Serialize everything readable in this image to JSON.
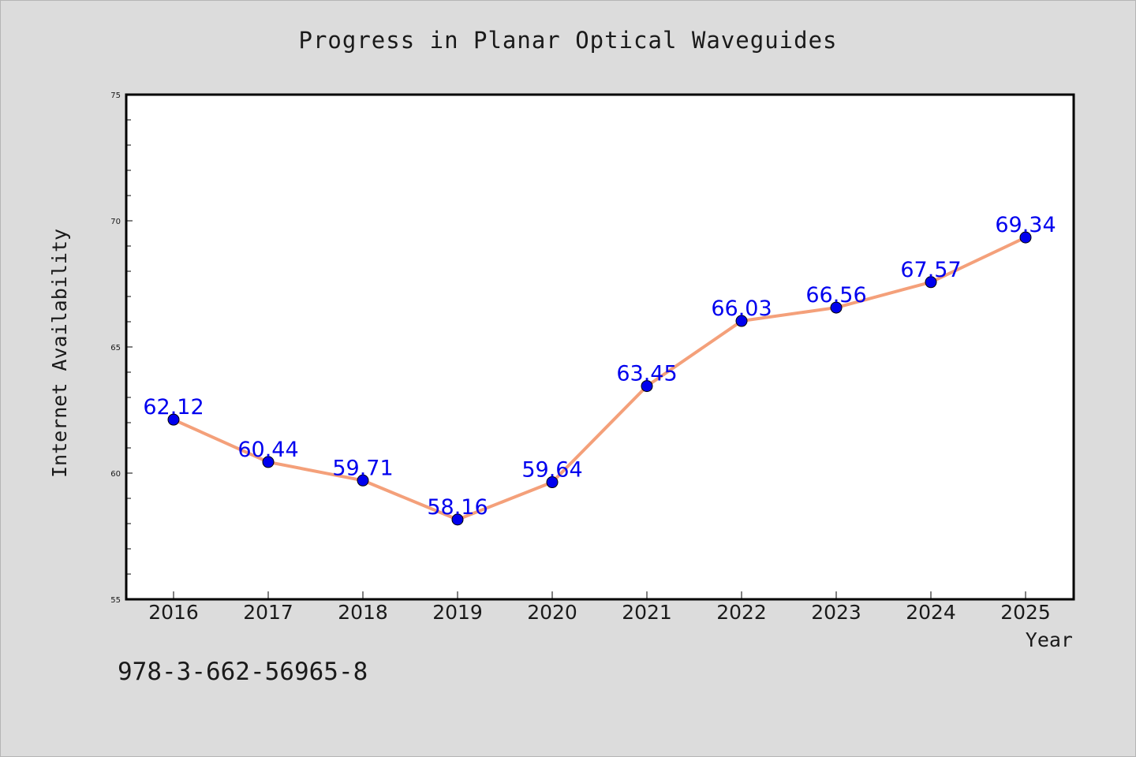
{
  "chart_data": {
    "type": "line",
    "title": "Progress in Planar Optical Waveguides",
    "xlabel": "Year",
    "ylabel": "Internet Availability",
    "categories": [
      "2016",
      "2017",
      "2018",
      "2019",
      "2020",
      "2021",
      "2022",
      "2023",
      "2024",
      "2025"
    ],
    "series": [
      {
        "values": [
          62.12,
          60.44,
          59.71,
          58.16,
          59.64,
          63.45,
          66.03,
          66.56,
          67.57,
          69.34
        ],
        "data_labels": [
          "62.12",
          "60.44",
          "59.71",
          "58.16",
          "59.64",
          "63.45",
          "66.03",
          "66.56",
          "67.57",
          "69.34"
        ],
        "line_color": "#f4a07a",
        "marker_color": "#0000ee"
      }
    ],
    "ylim": [
      55,
      75
    ],
    "yticks": [
      "55",
      "60",
      "65",
      "70",
      "75"
    ],
    "grid": false,
    "legend": "none"
  },
  "footer": {
    "isbn": "978-3-662-56965-8"
  },
  "colors": {
    "background": "#dcdcdc",
    "plot_background": "#ffffff"
  }
}
